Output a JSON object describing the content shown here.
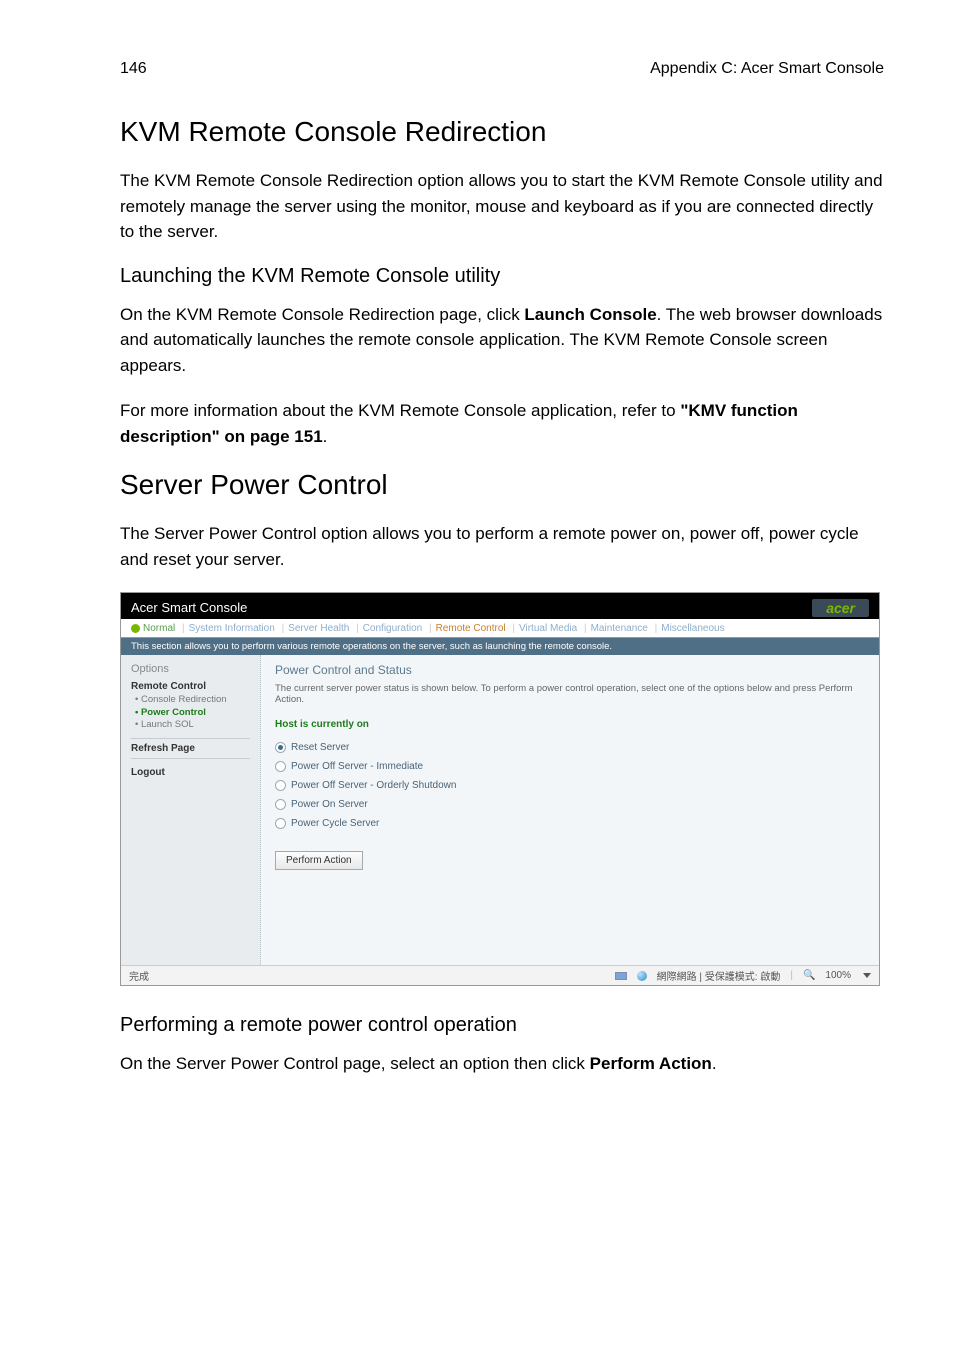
{
  "header": {
    "page_number": "146",
    "chapter": "Appendix C: Acer Smart Console"
  },
  "section1": {
    "title": "KVM Remote Console Redirection",
    "para1": "The KVM Remote Console Redirection option allows you to start the KVM Remote Console utility and remotely manage the server using the monitor, mouse and keyboard as if you are connected directly to the server.",
    "subhead": "Launching the KVM Remote Console utility",
    "para2_a": "On the KVM Remote Console Redirection page, click ",
    "para2_b_bold": "Launch Console",
    "para2_c": ". The web browser downloads and automatically launches the remote console application. The KVM Remote Console screen appears.",
    "para3_a": "For more information about the KVM Remote Console application, refer to ",
    "para3_b_bold": "\"KMV function description\" on page 151",
    "para3_c": "."
  },
  "section2": {
    "title": "Server Power Control",
    "para1": "The Server Power Control option allows you to perform a remote power on, power off, power cycle and reset your server."
  },
  "screenshot": {
    "app_title": "Acer Smart Console",
    "logo": "acer",
    "tabs": {
      "status": "Normal",
      "items": [
        "System Information",
        "Server Health",
        "Configuration",
        "Remote Control",
        "Virtual Media",
        "Maintenance",
        "Miscellaneous"
      ],
      "active_index": 3
    },
    "blue_bar": "This section allows you to perform various remote operations on the server, such as launching the remote console.",
    "sidebar": {
      "title": "Options",
      "group": "Remote Control",
      "items": [
        "Console Redirection",
        "Power Control",
        "Launch SOL"
      ],
      "active_index": 1,
      "refresh": "Refresh Page",
      "logout": "Logout"
    },
    "panel": {
      "title": "Power Control and Status",
      "desc": "The current server power status is shown below. To perform a power control operation, select one of the options below and press Perform Action.",
      "host_state": "Host is currently on",
      "radios": [
        {
          "label": "Reset Server",
          "selected": true
        },
        {
          "label": "Power Off Server - Immediate",
          "selected": false
        },
        {
          "label": "Power Off Server - Orderly Shutdown",
          "selected": false
        },
        {
          "label": "Power On Server",
          "selected": false
        },
        {
          "label": "Power Cycle Server",
          "selected": false
        }
      ],
      "button": "Perform Action"
    },
    "status_bar": {
      "done": "完成",
      "zone": "網際網路 | 受保護模式: 啟動",
      "zoom": "100%"
    }
  },
  "section3": {
    "subhead": "Performing a remote power control operation",
    "para_a": "On the Server Power Control page, select an option then click ",
    "para_b_bold": "Perform Action",
    "para_c": "."
  }
}
